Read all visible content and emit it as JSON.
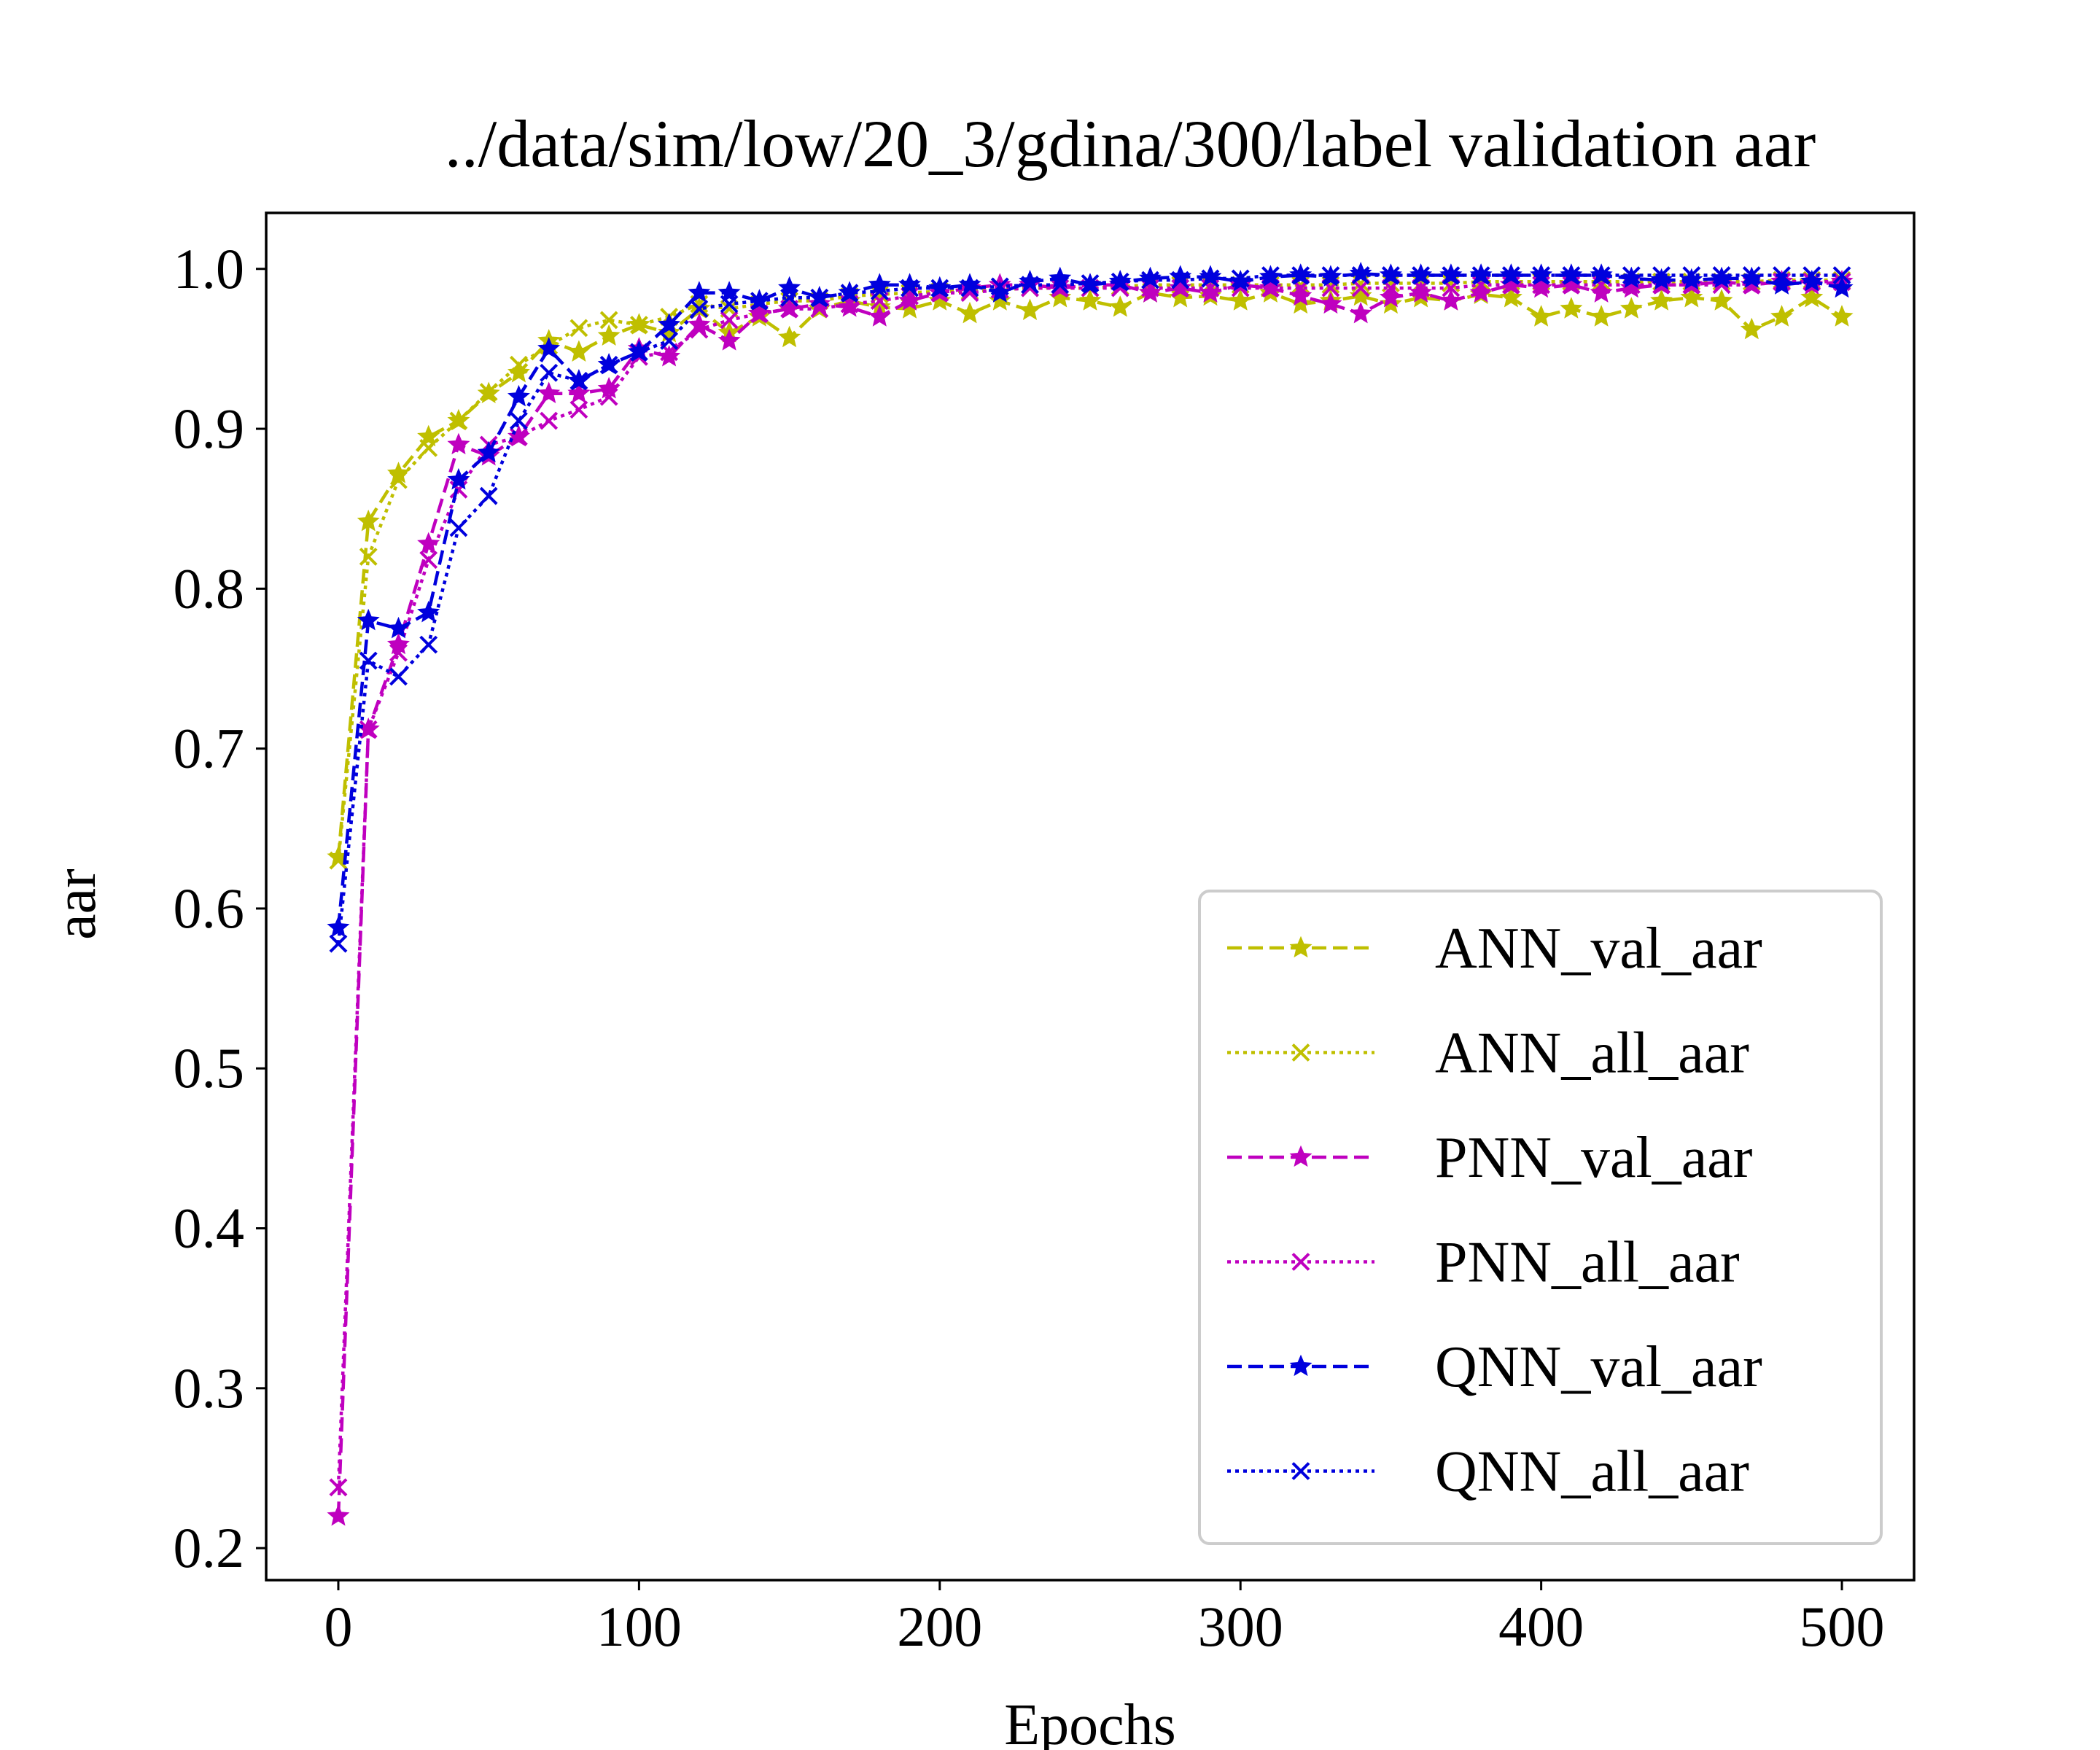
{
  "chart_data": {
    "type": "line",
    "title": "../data/sim/low/20_3/gdina/300/label validation aar",
    "xlabel": "Epochs",
    "ylabel": "aar",
    "xlim": [
      -24,
      524
    ],
    "ylim": [
      0.18,
      1.035
    ],
    "xticks": [
      0,
      100,
      200,
      300,
      400,
      500
    ],
    "yticks": [
      0.2,
      0.3,
      0.4,
      0.5,
      0.6,
      0.7,
      0.8,
      0.9,
      1.0
    ],
    "xtick_labels": [
      "0",
      "100",
      "200",
      "300",
      "400",
      "500"
    ],
    "ytick_labels": [
      "0.2",
      "0.3",
      "0.4",
      "0.5",
      "0.6",
      "0.7",
      "0.8",
      "0.9",
      "1.0"
    ],
    "grid": false,
    "legend_position": "lower-right",
    "x": [
      0,
      10,
      20,
      30,
      40,
      50,
      60,
      70,
      80,
      90,
      100,
      110,
      120,
      130,
      140,
      150,
      160,
      170,
      180,
      190,
      200,
      210,
      220,
      230,
      240,
      250,
      260,
      270,
      280,
      290,
      300,
      310,
      320,
      330,
      340,
      350,
      360,
      370,
      380,
      390,
      400,
      410,
      420,
      430,
      440,
      450,
      460,
      470,
      480,
      490,
      500
    ],
    "series": [
      {
        "name": "ANN_val_aar",
        "color": "#bfbf00",
        "dash": "dashed",
        "marker": "star",
        "values": [
          0.632,
          0.842,
          0.872,
          0.895,
          0.905,
          0.922,
          0.935,
          0.955,
          0.948,
          0.958,
          0.965,
          0.96,
          0.975,
          0.96,
          0.97,
          0.957,
          0.975,
          0.98,
          0.976,
          0.975,
          0.98,
          0.972,
          0.98,
          0.974,
          0.982,
          0.98,
          0.976,
          0.985,
          0.982,
          0.983,
          0.98,
          0.985,
          0.978,
          0.98,
          0.983,
          0.978,
          0.982,
          0.98,
          0.984,
          0.982,
          0.97,
          0.975,
          0.97,
          0.975,
          0.98,
          0.982,
          0.98,
          0.962,
          0.97,
          0.982,
          0.97
        ]
      },
      {
        "name": "ANN_all_aar",
        "color": "#bfbf00",
        "dash": "dotted",
        "marker": "x",
        "values": [
          0.63,
          0.82,
          0.868,
          0.888,
          0.905,
          0.923,
          0.94,
          0.952,
          0.963,
          0.968,
          0.965,
          0.97,
          0.978,
          0.975,
          0.978,
          0.98,
          0.98,
          0.983,
          0.984,
          0.985,
          0.986,
          0.986,
          0.987,
          0.988,
          0.988,
          0.988,
          0.989,
          0.99,
          0.99,
          0.99,
          0.99,
          0.99,
          0.99,
          0.99,
          0.991,
          0.991,
          0.991,
          0.991,
          0.992,
          0.992,
          0.992,
          0.992,
          0.992,
          0.992,
          0.992,
          0.992,
          0.992,
          0.992,
          0.993,
          0.993,
          0.993
        ]
      },
      {
        "name": "PNN_val_aar",
        "color": "#bf00bf",
        "dash": "dashed",
        "marker": "star",
        "values": [
          0.22,
          0.712,
          0.765,
          0.828,
          0.89,
          0.883,
          0.895,
          0.922,
          0.922,
          0.925,
          0.95,
          0.945,
          0.965,
          0.955,
          0.972,
          0.975,
          0.978,
          0.976,
          0.97,
          0.98,
          0.985,
          0.988,
          0.99,
          0.99,
          0.988,
          0.99,
          0.99,
          0.985,
          0.988,
          0.985,
          0.99,
          0.988,
          0.983,
          0.978,
          0.972,
          0.982,
          0.985,
          0.98,
          0.985,
          0.99,
          0.988,
          0.99,
          0.985,
          0.988,
          0.99,
          0.99,
          0.992,
          0.99,
          0.992,
          0.99,
          0.992
        ]
      },
      {
        "name": "PNN_all_aar",
        "color": "#bf00bf",
        "dash": "dotted",
        "marker": "x",
        "values": [
          0.238,
          0.712,
          0.76,
          0.818,
          0.862,
          0.89,
          0.895,
          0.905,
          0.912,
          0.92,
          0.945,
          0.948,
          0.962,
          0.968,
          0.972,
          0.975,
          0.975,
          0.978,
          0.98,
          0.983,
          0.985,
          0.985,
          0.987,
          0.988,
          0.988,
          0.988,
          0.988,
          0.988,
          0.988,
          0.988,
          0.988,
          0.988,
          0.988,
          0.988,
          0.988,
          0.988,
          0.988,
          0.988,
          0.99,
          0.99,
          0.99,
          0.99,
          0.99,
          0.99,
          0.99,
          0.99,
          0.99,
          0.99,
          0.992,
          0.992,
          0.992
        ]
      },
      {
        "name": "QNN_val_aar",
        "color": "#0000dd",
        "dash": "dashed",
        "marker": "star",
        "values": [
          0.588,
          0.78,
          0.775,
          0.785,
          0.868,
          0.885,
          0.92,
          0.95,
          0.93,
          0.94,
          0.948,
          0.965,
          0.985,
          0.985,
          0.98,
          0.988,
          0.982,
          0.985,
          0.99,
          0.99,
          0.988,
          0.99,
          0.985,
          0.992,
          0.994,
          0.99,
          0.992,
          0.994,
          0.995,
          0.995,
          0.992,
          0.995,
          0.996,
          0.995,
          0.997,
          0.996,
          0.996,
          0.996,
          0.996,
          0.996,
          0.996,
          0.996,
          0.996,
          0.994,
          0.993,
          0.993,
          0.994,
          0.994,
          0.99,
          0.992,
          0.988
        ]
      },
      {
        "name": "QNN_all_aar",
        "color": "#0000dd",
        "dash": "dotted",
        "marker": "x",
        "values": [
          0.578,
          0.755,
          0.745,
          0.765,
          0.838,
          0.858,
          0.905,
          0.935,
          0.93,
          0.94,
          0.948,
          0.955,
          0.975,
          0.978,
          0.98,
          0.982,
          0.982,
          0.985,
          0.986,
          0.988,
          0.988,
          0.988,
          0.989,
          0.99,
          0.99,
          0.991,
          0.992,
          0.993,
          0.993,
          0.994,
          0.994,
          0.996,
          0.996,
          0.996,
          0.996,
          0.996,
          0.996,
          0.996,
          0.996,
          0.996,
          0.996,
          0.996,
          0.996,
          0.996,
          0.996,
          0.996,
          0.996,
          0.996,
          0.996,
          0.996,
          0.996
        ]
      }
    ]
  }
}
